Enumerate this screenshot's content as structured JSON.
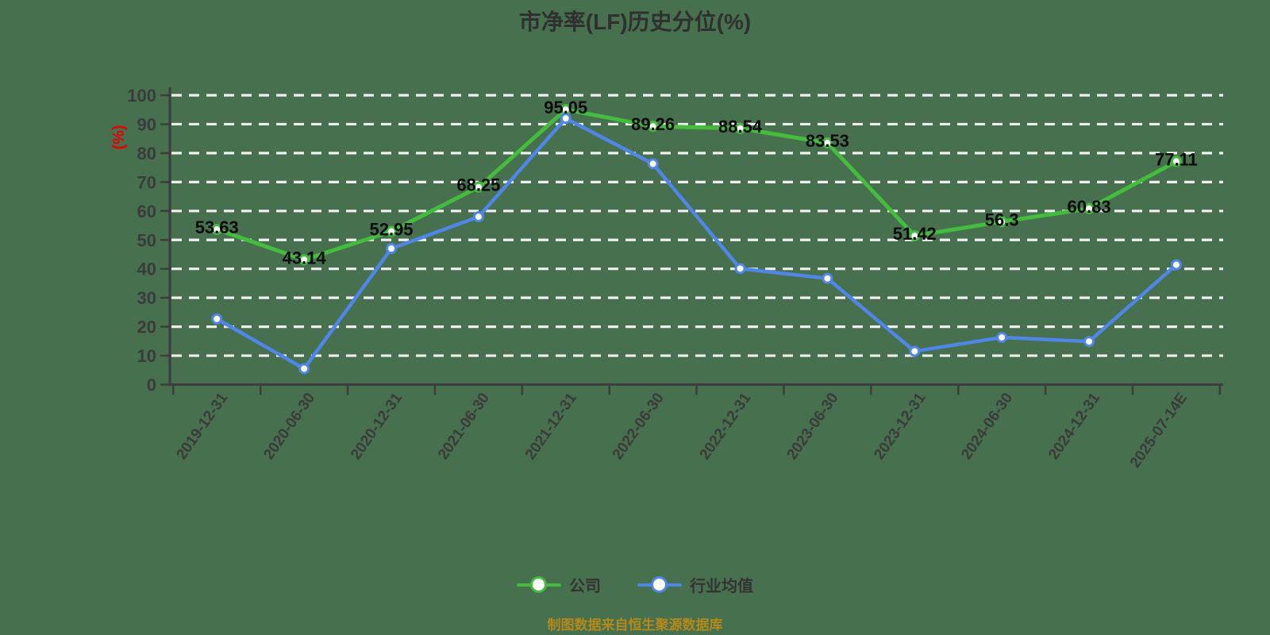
{
  "title": "市净率(LF)历史分位(%)",
  "note": "制图数据来自恒生聚源数据库",
  "colors": {
    "background": "#47704E",
    "company_line": "#44BC3E",
    "industry_line": "#4F86E8",
    "grid_line": "#EFEFEF",
    "axis_line": "#3D3D3D",
    "tick_label": "#3B3B3B",
    "data_label": "#0B0B0B",
    "y_unit_label": "#E60000",
    "title_text": "#303030",
    "legend_text": "#333333",
    "note_text": "#B3891B",
    "marker_fill": "#FFFFFF"
  },
  "chart_data": {
    "type": "line",
    "title": "市净率(LF)历史分位(%)",
    "xlabel": "",
    "ylabel": "(%)",
    "ylim": [
      0,
      100
    ],
    "yticks": [
      0,
      10,
      20,
      30,
      40,
      50,
      60,
      70,
      80,
      90,
      100
    ],
    "grid": "horizontal-dashed-white",
    "legend_position": "bottom",
    "categories": [
      "2019-12-31",
      "2020-06-30",
      "2020-12-31",
      "2021-06-30",
      "2021-12-31",
      "2022-06-30",
      "2022-12-31",
      "2023-06-30",
      "2023-12-31",
      "2024-06-30",
      "2024-12-31",
      "2025-07-14E"
    ],
    "series": [
      {
        "name": "公司",
        "color": "#44BC3E",
        "labels_shown": true,
        "values": [
          53.63,
          43.14,
          52.95,
          68.25,
          95.05,
          89.26,
          88.54,
          83.53,
          51.42,
          56.3,
          60.83,
          77.11
        ]
      },
      {
        "name": "行业均值",
        "color": "#4F86E8",
        "labels_shown": false,
        "values": [
          22.7,
          5.5,
          47,
          58,
          92,
          76.3,
          40.1,
          36.7,
          11.5,
          16.3,
          14.9,
          41.4
        ]
      }
    ]
  }
}
